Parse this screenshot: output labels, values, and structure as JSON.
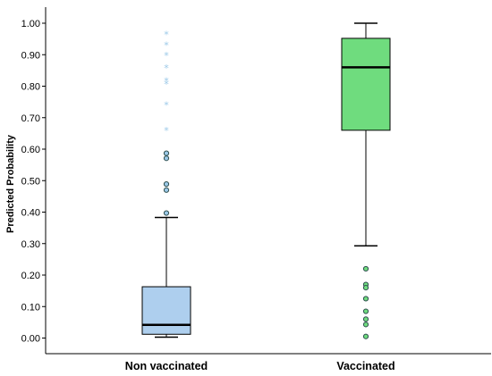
{
  "chart_data": {
    "type": "boxplot",
    "ylabel": "Predicted Probability",
    "xlabel": "",
    "ylim": [
      -0.05,
      1.05
    ],
    "yticks": [
      "0.00",
      "0.10",
      "0.20",
      "0.30",
      "0.40",
      "0.50",
      "0.60",
      "0.70",
      "0.80",
      "0.90",
      "1.00"
    ],
    "categories": [
      "Non vaccinated",
      "Vaccinated"
    ],
    "series": [
      {
        "category": "Non vaccinated",
        "fill": "#aecfee",
        "outlier_color": "#9cc9e8",
        "whisker_low": 0.003,
        "q1": 0.012,
        "median": 0.042,
        "q3": 0.163,
        "whisker_high": 0.383,
        "outliers": [
          0.397,
          0.47,
          0.489,
          0.571,
          0.587
        ],
        "extremes": [
          0.965,
          0.93,
          0.898,
          0.858,
          0.817,
          0.807,
          0.74,
          0.66
        ]
      },
      {
        "category": "Vaccinated",
        "fill": "#6fdc7e",
        "outlier_color": "#6fdc7e",
        "whisker_low": 0.293,
        "q1": 0.66,
        "median": 0.86,
        "q3": 0.952,
        "whisker_high": 1.0,
        "outliers": [
          0.22,
          0.17,
          0.16,
          0.125,
          0.085,
          0.06,
          0.043,
          0.005
        ],
        "extremes": []
      }
    ]
  }
}
